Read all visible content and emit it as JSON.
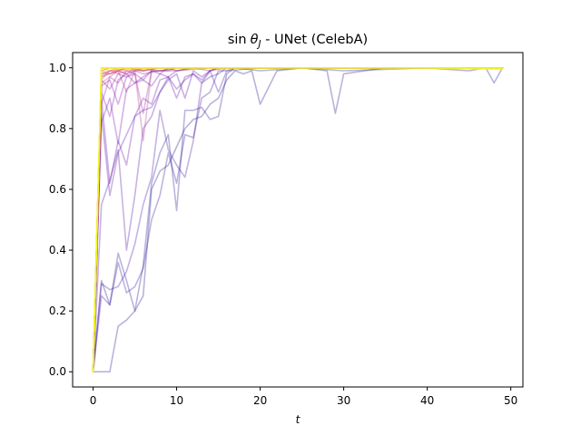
{
  "chart_data": {
    "type": "line",
    "title": "sin θ_J - UNet (CelebA)",
    "title_parts": {
      "func": "sin",
      "theta": "θ",
      "sub": "J",
      "rest": " - UNet (CelebA)"
    },
    "xlabel": "t",
    "ylabel": "",
    "xlim": [
      -2.45,
      51.45
    ],
    "ylim": [
      -0.05,
      1.05
    ],
    "xticks": [
      0,
      10,
      20,
      30,
      40,
      50
    ],
    "yticks": [
      0.0,
      0.2,
      0.4,
      0.6,
      0.8,
      1.0
    ],
    "ytick_labels": [
      "0.0",
      "0.2",
      "0.4",
      "0.6",
      "0.8",
      "1.0"
    ],
    "grid": false,
    "legend": "none",
    "colormap": "plasma",
    "series": [
      {
        "color": "#0d0887",
        "opacity": 0.3,
        "x": [
          0,
          1,
          2,
          3,
          4,
          5,
          6,
          7,
          8,
          9,
          10,
          11,
          12,
          13,
          14,
          15,
          16,
          17,
          18,
          19,
          20,
          22,
          25,
          28,
          29,
          30,
          35,
          40,
          45,
          47,
          48,
          49
        ],
        "y": [
          0,
          0,
          0,
          0.15,
          0.17,
          0.2,
          0.25,
          0.6,
          0.66,
          0.68,
          0.74,
          0.8,
          0.83,
          0.84,
          0.88,
          0.9,
          0.96,
          0.99,
          0.98,
          0.99,
          0.88,
          0.99,
          1,
          0.99,
          0.85,
          0.98,
          1,
          1,
          0.99,
          1,
          0.95,
          1
        ]
      },
      {
        "color": "#1a0a8c",
        "opacity": 0.3,
        "x": [
          0,
          1,
          2,
          3,
          4,
          5,
          6,
          7,
          8,
          9,
          10,
          11,
          12,
          13,
          14,
          15,
          16,
          17,
          20,
          25,
          30,
          40,
          49
        ],
        "y": [
          0,
          0.3,
          0.22,
          0.39,
          0.3,
          0.2,
          0.35,
          0.62,
          0.72,
          0.78,
          0.53,
          0.86,
          0.86,
          0.87,
          0.83,
          0.84,
          0.98,
          1,
          0.99,
          1,
          0.99,
          1,
          1
        ]
      },
      {
        "color": "#2a0593",
        "opacity": 0.3,
        "x": [
          0,
          1,
          2,
          3,
          4,
          5,
          6,
          7,
          8,
          9,
          10,
          11,
          12,
          13,
          14,
          15,
          16,
          20,
          30,
          49
        ],
        "y": [
          0,
          0.25,
          0.22,
          0.36,
          0.26,
          0.28,
          0.34,
          0.5,
          0.58,
          0.72,
          0.62,
          0.78,
          0.77,
          0.9,
          0.92,
          0.99,
          0.99,
          1,
          1,
          1
        ]
      },
      {
        "color": "#3a049a",
        "opacity": 0.3,
        "x": [
          0,
          1,
          2,
          3,
          4,
          5,
          6,
          7,
          8,
          9,
          10,
          11,
          12,
          13,
          14,
          15,
          16,
          20,
          30,
          49
        ],
        "y": [
          0,
          0.29,
          0.27,
          0.28,
          0.33,
          0.42,
          0.55,
          0.64,
          0.86,
          0.73,
          0.68,
          0.64,
          0.76,
          0.95,
          0.97,
          0.98,
          1,
          1,
          1,
          1
        ]
      },
      {
        "color": "#47039f",
        "opacity": 0.3,
        "x": [
          0,
          1,
          2,
          3,
          4,
          5,
          6,
          7,
          8,
          9,
          10,
          11,
          12,
          13,
          14,
          15,
          16,
          17,
          20,
          30,
          49
        ],
        "y": [
          0,
          0.55,
          0.63,
          0.73,
          0.4,
          0.58,
          0.8,
          0.84,
          0.92,
          0.96,
          0.98,
          0.9,
          0.99,
          0.97,
          0.99,
          0.92,
          0.99,
          1,
          1,
          1,
          1
        ]
      },
      {
        "color": "#5402a3",
        "opacity": 0.3,
        "x": [
          0,
          1,
          2,
          3,
          4,
          5,
          6,
          7,
          8,
          9,
          10,
          11,
          12,
          13,
          14,
          15,
          16,
          20,
          30,
          49
        ],
        "y": [
          0,
          0.85,
          0.58,
          0.72,
          0.78,
          0.84,
          0.86,
          0.87,
          0.92,
          0.97,
          0.93,
          0.96,
          0.98,
          0.95,
          0.99,
          1,
          1,
          1,
          1,
          1
        ]
      },
      {
        "color": "#6200a4",
        "opacity": 0.3,
        "x": [
          0,
          1,
          2,
          3,
          4,
          5,
          6,
          7,
          8,
          9,
          10,
          11,
          12,
          13,
          14,
          15,
          20,
          30,
          49
        ],
        "y": [
          0,
          0.9,
          0.62,
          0.76,
          0.68,
          0.84,
          0.9,
          0.88,
          0.96,
          0.97,
          0.9,
          0.97,
          0.98,
          0.96,
          0.99,
          1,
          1,
          1,
          1
        ]
      },
      {
        "color": "#6e00a8",
        "opacity": 0.3,
        "x": [
          0,
          1,
          2,
          3,
          4,
          5,
          6,
          7,
          8,
          9,
          10,
          12,
          14,
          16,
          20,
          30,
          49
        ],
        "y": [
          0,
          0.82,
          0.9,
          0.75,
          0.93,
          0.95,
          0.96,
          0.94,
          0.98,
          0.97,
          0.99,
          1,
          0.99,
          1,
          1,
          1,
          1
        ]
      },
      {
        "color": "#7a02a8",
        "opacity": 0.3,
        "x": [
          0,
          1,
          2,
          3,
          4,
          5,
          6,
          7,
          8,
          9,
          10,
          12,
          15,
          20,
          30,
          49
        ],
        "y": [
          0,
          0.92,
          0.84,
          0.96,
          0.98,
          0.95,
          0.97,
          0.99,
          0.98,
          1,
          0.99,
          1,
          1,
          1,
          1,
          1
        ]
      },
      {
        "color": "#8606a6",
        "opacity": 0.3,
        "x": [
          0,
          1,
          2,
          3,
          4,
          5,
          6,
          7,
          8,
          10,
          14,
          20,
          30,
          49
        ],
        "y": [
          0,
          0.94,
          0.96,
          0.88,
          0.97,
          0.98,
          0.96,
          0.99,
          0.99,
          0.99,
          1,
          1,
          1,
          1
        ]
      },
      {
        "color": "#920fa3",
        "opacity": 0.3,
        "x": [
          0,
          1,
          2,
          3,
          4,
          5,
          6,
          8,
          10,
          14,
          20,
          30,
          49
        ],
        "y": [
          0,
          0.96,
          0.93,
          0.98,
          0.97,
          0.99,
          0.98,
          0.99,
          1,
          1,
          1,
          1,
          1
        ]
      },
      {
        "color": "#9c179e",
        "opacity": 0.3,
        "x": [
          0,
          1,
          2,
          3,
          4,
          5,
          6,
          7,
          8,
          9,
          10,
          12,
          20,
          30,
          49
        ],
        "y": [
          0,
          0.88,
          0.97,
          0.95,
          0.99,
          0.98,
          0.85,
          0.99,
          0.99,
          0.99,
          1,
          1,
          1,
          1,
          1
        ]
      },
      {
        "color": "#a72197",
        "opacity": 0.3,
        "x": [
          0,
          1,
          2,
          3,
          4,
          5,
          6,
          8,
          10,
          20,
          30,
          49
        ],
        "y": [
          0,
          0.97,
          0.98,
          0.99,
          0.98,
          0.99,
          0.99,
          1,
          1,
          1,
          1,
          1
        ]
      },
      {
        "color": "#b12a90",
        "opacity": 0.3,
        "x": [
          0,
          1,
          2,
          3,
          4,
          5,
          6,
          7,
          8,
          10,
          20,
          30,
          49
        ],
        "y": [
          0,
          0.95,
          0.97,
          0.99,
          0.92,
          0.99,
          0.76,
          0.99,
          0.99,
          1,
          1,
          1,
          1
        ]
      },
      {
        "color": "#bc3587",
        "opacity": 0.3,
        "x": [
          0,
          1,
          2,
          3,
          4,
          5,
          6,
          8,
          10,
          20,
          30,
          49
        ],
        "y": [
          0,
          0.97,
          0.99,
          0.98,
          0.99,
          0.99,
          1,
          1,
          1,
          1,
          1,
          1
        ]
      },
      {
        "color": "#c5407e",
        "opacity": 0.3,
        "x": [
          0,
          1,
          2,
          3,
          4,
          6,
          8,
          10,
          20,
          30,
          49
        ],
        "y": [
          0,
          0.98,
          0.98,
          0.99,
          1,
          0.99,
          1,
          1,
          1,
          1,
          1
        ]
      },
      {
        "color": "#cc4977",
        "opacity": 0.3,
        "x": [
          0,
          1,
          2,
          3,
          4,
          5,
          6,
          8,
          10,
          20,
          30,
          49
        ],
        "y": [
          0,
          0.96,
          0.99,
          0.99,
          0.98,
          1,
          0.99,
          1,
          1,
          1,
          1,
          1
        ]
      },
      {
        "color": "#d5546e",
        "opacity": 0.3,
        "x": [
          0,
          1,
          2,
          3,
          4,
          6,
          8,
          10,
          20,
          30,
          49
        ],
        "y": [
          0,
          0.98,
          0.99,
          0.99,
          1,
          0.99,
          1,
          1,
          1,
          1,
          1
        ]
      },
      {
        "color": "#dd5e66",
        "opacity": 0.3,
        "x": [
          0,
          1,
          2,
          3,
          5,
          8,
          10,
          20,
          30,
          49
        ],
        "y": [
          0,
          0.99,
          0.98,
          0.99,
          1,
          1,
          1,
          1,
          1,
          1
        ]
      },
      {
        "color": "#e5695e",
        "opacity": 0.3,
        "x": [
          0,
          1,
          2,
          3,
          5,
          8,
          10,
          20,
          30,
          49
        ],
        "y": [
          0,
          0.98,
          0.99,
          1,
          1,
          1,
          1,
          1,
          1,
          1
        ]
      },
      {
        "color": "#ec7853",
        "opacity": 0.3,
        "x": [
          0,
          1,
          2,
          4,
          8,
          12,
          20,
          30,
          49
        ],
        "y": [
          0,
          0.99,
          1,
          0.99,
          1,
          1,
          1,
          1,
          1
        ]
      },
      {
        "color": "#f2844b",
        "opacity": 0.3,
        "x": [
          0,
          1,
          2,
          4,
          8,
          12,
          20,
          30,
          49
        ],
        "y": [
          0,
          0.99,
          1,
          1,
          1,
          1,
          1,
          1,
          1
        ]
      },
      {
        "color": "#f79342",
        "opacity": 0.3,
        "x": [
          0,
          1,
          2,
          4,
          8,
          12,
          20,
          30,
          49
        ],
        "y": [
          0,
          1,
          0.99,
          1,
          1,
          1,
          1,
          1,
          1
        ]
      },
      {
        "color": "#fba238",
        "opacity": 0.3,
        "x": [
          0,
          1,
          2,
          4,
          8,
          12,
          20,
          30,
          49
        ],
        "y": [
          0,
          1,
          1,
          1,
          1,
          1,
          1,
          1,
          1
        ]
      },
      {
        "color": "#feb62d",
        "opacity": 0.3,
        "x": [
          0,
          1,
          2,
          4,
          8,
          12,
          20,
          30,
          49
        ],
        "y": [
          0,
          1,
          1,
          1,
          1,
          1,
          1,
          1,
          1
        ]
      },
      {
        "color": "#fec229",
        "opacity": 0.3,
        "x": [
          0,
          1,
          3,
          10,
          20,
          30,
          49
        ],
        "y": [
          0,
          1,
          1,
          1,
          1,
          1,
          1
        ]
      },
      {
        "color": "#fcd225",
        "opacity": 0.3,
        "x": [
          0,
          1,
          3,
          10,
          20,
          30,
          49
        ],
        "y": [
          0,
          1,
          1,
          1,
          1,
          1,
          1
        ]
      },
      {
        "color": "#f8df25",
        "opacity": 0.3,
        "x": [
          0,
          1,
          3,
          10,
          20,
          30,
          49
        ],
        "y": [
          0,
          1,
          1,
          1,
          1,
          1,
          1
        ]
      },
      {
        "color": "#f3ee27",
        "opacity": 0.3,
        "x": [
          0,
          1,
          3,
          10,
          20,
          30,
          49
        ],
        "y": [
          0,
          1,
          1,
          1,
          1,
          1,
          1
        ]
      },
      {
        "color": "#f0f921",
        "opacity": 0.85,
        "x": [
          0,
          1,
          5,
          10,
          20,
          30,
          40,
          49
        ],
        "y": [
          0,
          1,
          1,
          1,
          1,
          1,
          1,
          1
        ]
      },
      {
        "color": "#f0f921",
        "opacity": 0.85,
        "x": [
          0,
          1,
          5,
          10,
          20,
          30,
          40,
          49
        ],
        "y": [
          0,
          1,
          1,
          1,
          1,
          1,
          1,
          0.995
        ]
      }
    ]
  }
}
